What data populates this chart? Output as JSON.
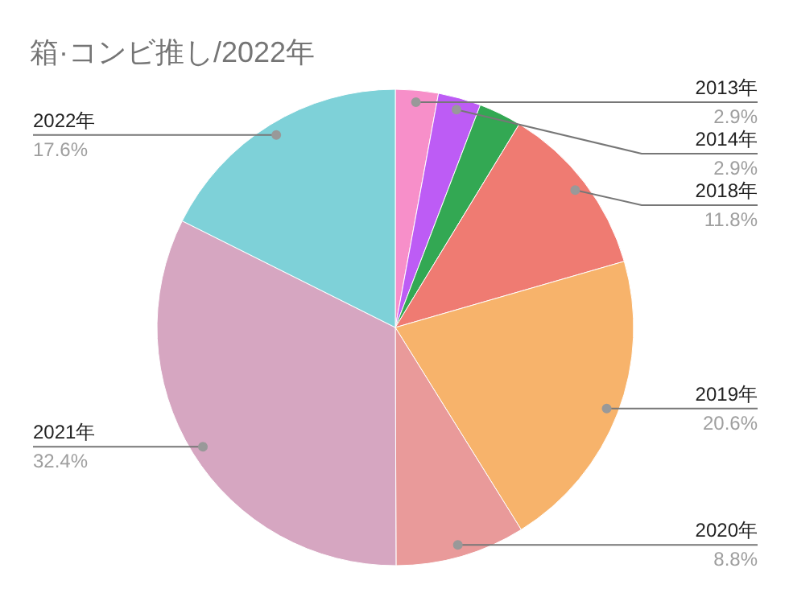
{
  "chart_data": {
    "type": "pie",
    "title": "箱·コンビ推し/2022年",
    "categories": [
      "2013年",
      "2014年",
      null,
      "2018年",
      "2019年",
      "2020年",
      "2021年",
      "2022年"
    ],
    "values": [
      2.9,
      2.9,
      2.9,
      11.8,
      20.6,
      8.8,
      32.4,
      17.6
    ],
    "value_labels": [
      "2.9%",
      "2.9%",
      null,
      "11.8%",
      "20.6%",
      "8.8%",
      "32.4%",
      "17.6%"
    ],
    "colors": [
      "#f78fc9",
      "#bd5cf5",
      "#33a853",
      "#ef7b72",
      "#f7b36b",
      "#e99a9a",
      "#d6a6c1",
      "#7ed1d8"
    ]
  }
}
